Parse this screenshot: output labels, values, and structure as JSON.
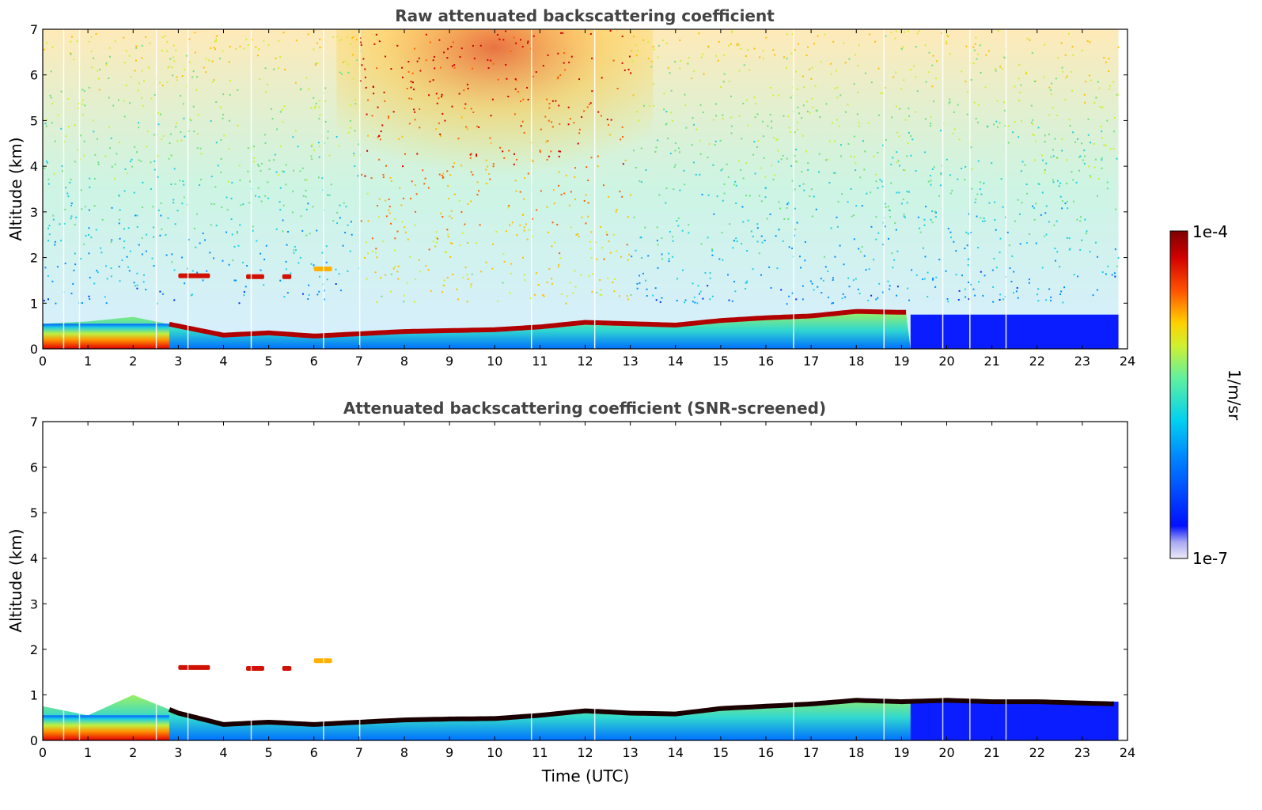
{
  "chart_data": [
    {
      "type": "heatmap",
      "title": "Raw attenuated backscattering coefficient",
      "xlabel": "",
      "ylabel": "Altitude (km)",
      "xlim": [
        0,
        24
      ],
      "ylim": [
        0,
        7
      ],
      "x_ticks": [
        "0",
        "1",
        "2",
        "3",
        "4",
        "5",
        "6",
        "7",
        "8",
        "9",
        "10",
        "11",
        "12",
        "13",
        "14",
        "15",
        "16",
        "17",
        "18",
        "19",
        "20",
        "21",
        "22",
        "23",
        "24"
      ],
      "y_ticks": [
        "0",
        "1",
        "2",
        "3",
        "4",
        "5",
        "6",
        "7"
      ],
      "data_end_time": 23.8,
      "aerosol_layer_top_km": {
        "time": [
          0,
          1,
          2,
          3,
          4,
          5,
          6,
          7,
          8,
          9,
          10,
          11,
          12,
          13,
          14,
          15,
          16,
          17,
          18,
          19
        ],
        "height": [
          0.55,
          0.6,
          0.7,
          0.5,
          0.3,
          0.35,
          0.28,
          0.33,
          0.38,
          0.4,
          0.42,
          0.48,
          0.58,
          0.55,
          0.52,
          0.62,
          0.68,
          0.72,
          0.82,
          0.8
        ]
      },
      "elevated_layers_km": [
        {
          "t0": 3.0,
          "t1": 3.7,
          "z": 1.6
        },
        {
          "t0": 4.5,
          "t1": 4.9,
          "z": 1.58
        },
        {
          "t0": 5.3,
          "t1": 5.5,
          "z": 1.58
        },
        {
          "t0": 6.0,
          "t1": 6.4,
          "z": 1.75
        }
      ],
      "background_signal": "noisy, strongest aloft between ~8 and 12 UTC"
    },
    {
      "type": "heatmap",
      "title": "Attenuated backscattering coefficient (SNR-screened)",
      "xlabel": "Time (UTC)",
      "ylabel": "Altitude (km)",
      "xlim": [
        0,
        24
      ],
      "ylim": [
        0,
        7
      ],
      "x_ticks": [
        "0",
        "1",
        "2",
        "3",
        "4",
        "5",
        "6",
        "7",
        "8",
        "9",
        "10",
        "11",
        "12",
        "13",
        "14",
        "15",
        "16",
        "17",
        "18",
        "19",
        "20",
        "21",
        "22",
        "23",
        "24"
      ],
      "y_ticks": [
        "0",
        "1",
        "2",
        "3",
        "4",
        "5",
        "6",
        "7"
      ],
      "data_end_time": 23.8,
      "aerosol_layer_top_km": {
        "time": [
          0,
          1,
          2,
          3,
          4,
          5,
          6,
          7,
          8,
          9,
          10,
          11,
          12,
          13,
          14,
          15,
          16,
          17,
          18,
          19,
          20,
          21,
          22,
          23,
          23.8
        ],
        "height": [
          0.75,
          0.55,
          1.0,
          0.6,
          0.35,
          0.4,
          0.35,
          0.4,
          0.45,
          0.47,
          0.48,
          0.55,
          0.65,
          0.6,
          0.58,
          0.7,
          0.75,
          0.8,
          0.88,
          0.85,
          0.88,
          0.85,
          0.85,
          0.82,
          0.8
        ]
      },
      "background_signal": "screened (blank)"
    }
  ],
  "colorbar": {
    "label": "1/m/sr",
    "max_label": "1e-4",
    "min_label": "1e-7",
    "colors": [
      "#ecebf7",
      "#c0bff0",
      "#7f7ff5",
      "#0010ff",
      "#0060ff",
      "#00b0ff",
      "#20e0e0",
      "#60f0a0",
      "#b0f050",
      "#f0f000",
      "#ffb000",
      "#ff5000",
      "#e00000",
      "#7f0000"
    ]
  }
}
